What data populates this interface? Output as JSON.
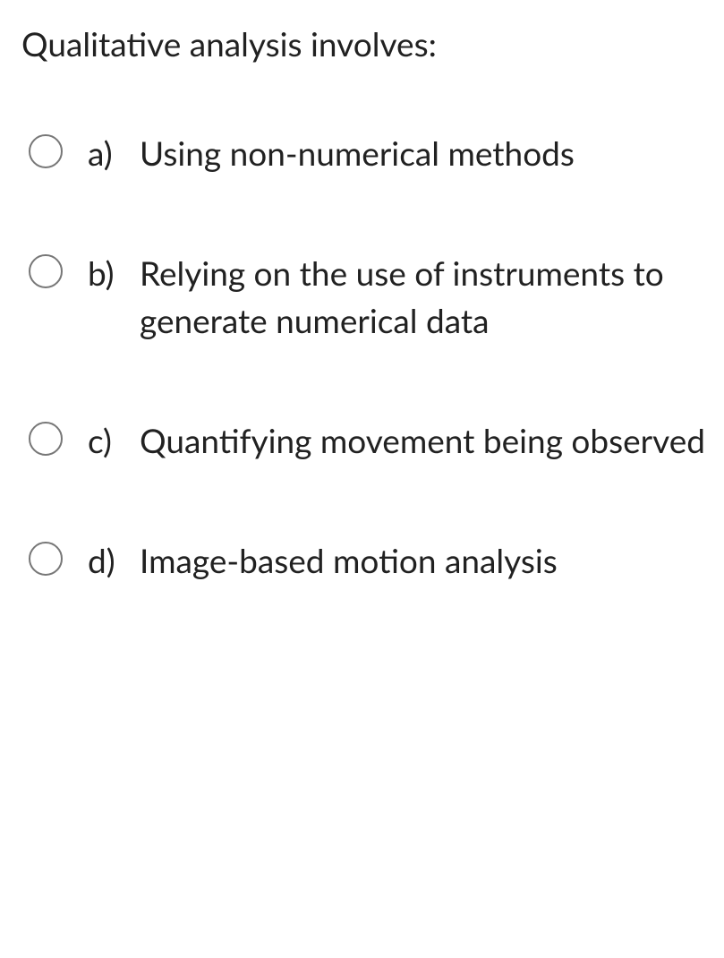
{
  "question": "Qualitative analysis involves:",
  "options": [
    {
      "letter": "a)",
      "text": "Using non-numerical methods"
    },
    {
      "letter": "b)",
      "text": "Relying on the use of instruments to generate numerical data"
    },
    {
      "letter": "c)",
      "text": "Quantifying movement being observed"
    },
    {
      "letter": "d)",
      "text": "Image-based motion analysis"
    }
  ]
}
